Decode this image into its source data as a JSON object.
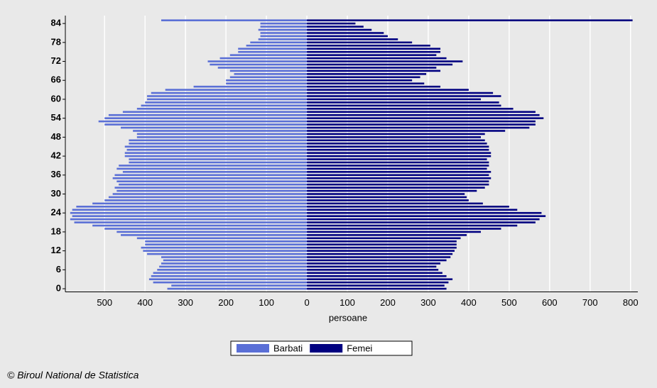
{
  "chart_data": {
    "type": "bar",
    "orientation": "horizontal",
    "x_label": "persoane",
    "source": "© Biroul National de Statistica",
    "y": [
      0,
      1,
      2,
      3,
      4,
      5,
      6,
      7,
      8,
      9,
      10,
      11,
      12,
      13,
      14,
      15,
      16,
      17,
      18,
      19,
      20,
      21,
      22,
      23,
      24,
      25,
      26,
      27,
      28,
      29,
      30,
      31,
      32,
      33,
      34,
      35,
      36,
      37,
      38,
      39,
      40,
      41,
      42,
      43,
      44,
      45,
      46,
      47,
      48,
      49,
      50,
      51,
      52,
      53,
      54,
      55,
      56,
      57,
      58,
      59,
      60,
      61,
      62,
      63,
      64,
      65,
      66,
      67,
      68,
      69,
      70,
      71,
      72,
      73,
      74,
      75,
      76,
      77,
      78,
      79,
      80,
      81,
      82,
      83,
      84,
      85
    ],
    "series": [
      {
        "name": "Barbati",
        "color": "#5a6fd6",
        "values": [
          -345,
          -335,
          -380,
          -390,
          -385,
          -380,
          -370,
          -365,
          -360,
          -355,
          -360,
          -395,
          -405,
          -410,
          -400,
          -400,
          -420,
          -460,
          -470,
          -500,
          -530,
          -575,
          -585,
          -580,
          -585,
          -580,
          -570,
          -530,
          -500,
          -490,
          -480,
          -470,
          -475,
          -465,
          -470,
          -480,
          -475,
          -455,
          -470,
          -465,
          -440,
          -440,
          -450,
          -450,
          -445,
          -450,
          -440,
          -440,
          -420,
          -420,
          -430,
          -460,
          -500,
          -515,
          -500,
          -490,
          -455,
          -420,
          -410,
          -400,
          -395,
          -395,
          -385,
          -350,
          -280,
          -200,
          -200,
          -190,
          -180,
          -190,
          -220,
          -240,
          -245,
          -215,
          -190,
          -170,
          -170,
          -150,
          -140,
          -120,
          -115,
          -115,
          -120,
          -115,
          -115,
          -360
        ]
      },
      {
        "name": "Femei",
        "color": "#000080",
        "values": [
          345,
          340,
          350,
          360,
          345,
          335,
          325,
          320,
          330,
          345,
          355,
          360,
          365,
          370,
          370,
          370,
          380,
          395,
          430,
          480,
          520,
          565,
          575,
          590,
          580,
          520,
          500,
          435,
          400,
          395,
          390,
          420,
          440,
          450,
          450,
          455,
          450,
          455,
          445,
          450,
          450,
          445,
          455,
          455,
          450,
          450,
          445,
          440,
          430,
          440,
          490,
          550,
          565,
          565,
          585,
          575,
          565,
          510,
          480,
          475,
          430,
          480,
          460,
          400,
          330,
          290,
          260,
          280,
          295,
          330,
          320,
          360,
          385,
          345,
          320,
          330,
          330,
          305,
          260,
          225,
          200,
          190,
          160,
          140,
          120,
          805
        ]
      }
    ],
    "xlim": [
      -597,
      818
    ],
    "xticks": [
      {
        "value": -500,
        "label": "500"
      },
      {
        "value": -400,
        "label": "400"
      },
      {
        "value": -300,
        "label": "300"
      },
      {
        "value": -200,
        "label": "200"
      },
      {
        "value": -100,
        "label": "100"
      },
      0,
      100,
      200,
      300,
      400,
      500,
      600,
      700,
      800
    ],
    "ylim": [
      -1,
      86.5
    ],
    "yticks": [
      0,
      6,
      12,
      18,
      24,
      30,
      36,
      42,
      48,
      54,
      60,
      66,
      72,
      78,
      84
    ],
    "grid": true
  }
}
